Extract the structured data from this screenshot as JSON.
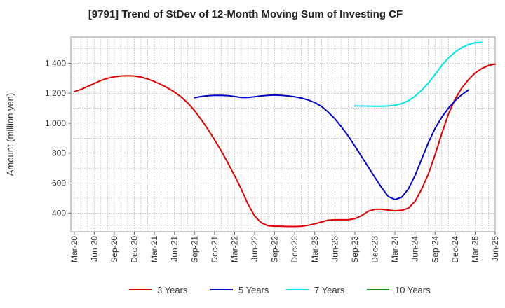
{
  "chart_data": {
    "type": "line",
    "title": "[9791]  Trend of StDev of 12-Month Moving Sum of Investing CF",
    "ylabel": "Amount (million yen)",
    "xlabel": "",
    "ylim": [
      275,
      1575
    ],
    "yticks": [
      400,
      600,
      800,
      1000,
      1200,
      1400
    ],
    "ytick_labels": [
      "400",
      "600",
      "800",
      "1,000",
      "1,200",
      "1,400"
    ],
    "xlim": [
      "2020-03",
      "2025-06"
    ],
    "xtick_labels": [
      "Mar-20",
      "Jun-20",
      "Sep-20",
      "Dec-20",
      "Mar-21",
      "Jun-21",
      "Sep-21",
      "Dec-21",
      "Mar-22",
      "Jun-22",
      "Sep-22",
      "Dec-22",
      "Mar-23",
      "Jun-23",
      "Sep-23",
      "Dec-23",
      "Mar-24",
      "Jun-24",
      "Sep-24",
      "Dec-24",
      "Mar-25",
      "Jun-25"
    ],
    "grid": true,
    "legend_position": "bottom",
    "series": [
      {
        "name": "3 Years",
        "color": "#e00000",
        "x_start": "2020-03",
        "values": [
          1210,
          1225,
          1245,
          1265,
          1285,
          1300,
          1310,
          1315,
          1317,
          1315,
          1308,
          1295,
          1278,
          1258,
          1235,
          1208,
          1175,
          1135,
          1085,
          1025,
          960,
          890,
          815,
          735,
          650,
          560,
          460,
          380,
          335,
          315,
          312,
          312,
          310,
          310,
          312,
          318,
          328,
          340,
          352,
          355,
          355,
          355,
          362,
          382,
          412,
          425,
          425,
          420,
          415,
          418,
          432,
          478,
          560,
          660,
          790,
          930,
          1060,
          1160,
          1235,
          1290,
          1335,
          1365,
          1385,
          1395
        ]
      },
      {
        "name": "5 Years",
        "color": "#0000c8",
        "x_start": "2021-09",
        "values": [
          1170,
          1178,
          1183,
          1186,
          1186,
          1184,
          1178,
          1172,
          1172,
          1176,
          1182,
          1186,
          1188,
          1186,
          1182,
          1176,
          1168,
          1155,
          1138,
          1112,
          1075,
          1030,
          975,
          915,
          848,
          778,
          708,
          638,
          570,
          510,
          490,
          505,
          560,
          650,
          760,
          870,
          965,
          1040,
          1100,
          1150,
          1190,
          1222
        ]
      },
      {
        "name": "7 Years",
        "color": "#00e5ee",
        "x_start": "2023-09",
        "values": [
          1115,
          1115,
          1114,
          1113,
          1113,
          1115,
          1120,
          1130,
          1150,
          1180,
          1220,
          1268,
          1325,
          1385,
          1435,
          1475,
          1505,
          1525,
          1537,
          1540
        ]
      },
      {
        "name": "10 Years",
        "color": "#1a8c1a",
        "x_start": "2025-03",
        "values": []
      }
    ]
  }
}
